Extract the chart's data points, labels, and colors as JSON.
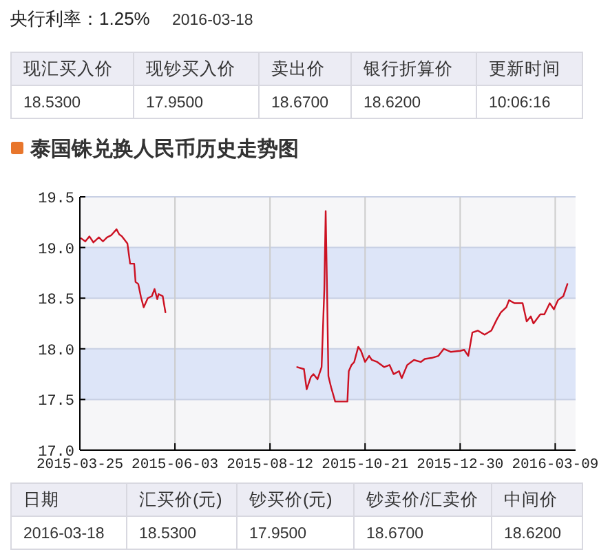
{
  "chart_data": [
    {
      "type": "other",
      "title": "央行利率：1.25%",
      "subtitle": "2016-03-18",
      "categories": [
        "现汇买入价",
        "现钞买入价",
        "卖出价",
        "银行折算价",
        "更新时间"
      ],
      "annotations": [
        "18.5300",
        "17.9500",
        "18.6700",
        "18.6200",
        "10:06:16"
      ]
    },
    {
      "type": "line",
      "title": "泰国铢兑换人民币历史走势图",
      "xlim": [
        "2015-03-25",
        "2016-03-24"
      ],
      "xticks": [
        "2015-03-25",
        "2015-06-03",
        "2015-08-12",
        "2015-10-21",
        "2015-12-30",
        "2016-03-09"
      ],
      "ylim": [
        17,
        19.5
      ],
      "yticks": [
        {
          "value": 17,
          "label": "17.0"
        },
        17.5,
        {
          "value": 18,
          "label": "18.0"
        },
        18.5,
        {
          "value": 19,
          "label": "19.0"
        },
        19.5
      ],
      "grid": true,
      "line_style": "solid",
      "marker": "none",
      "series": [
        {
          "color": "#cc1122",
          "x": [
            "2015-03-26",
            "2015-03-29",
            "2015-04-01",
            "2015-04-04",
            "2015-04-08",
            "2015-04-11",
            "2015-04-14",
            "2015-04-17",
            "2015-04-21",
            "2015-04-23",
            "2015-04-25",
            "2015-04-29",
            "2015-05-01",
            "2015-05-04",
            "2015-05-05",
            "2015-05-07",
            "2015-05-09",
            "2015-05-11",
            "2015-05-14",
            "2015-05-17",
            "2015-05-19",
            "2015-05-21",
            "2015-05-22",
            "2015-05-25",
            "2015-05-27",
            "2015-07-15",
            "2015-09-01",
            "2015-09-06",
            "2015-09-08",
            "2015-09-11",
            "2015-09-13",
            "2015-09-16",
            "2015-09-19",
            "2015-09-21",
            "2015-09-22",
            "2015-09-23",
            "2015-09-24",
            "2015-09-26",
            "2015-09-29",
            "2015-10-08",
            "2015-10-09",
            "2015-10-11",
            "2015-10-13",
            "2015-10-16",
            "2015-10-18",
            "2015-10-21",
            "2015-10-24",
            "2015-10-26",
            "2015-10-30",
            "2015-11-04",
            "2015-11-08",
            "2015-11-11",
            "2015-11-15",
            "2015-11-17",
            "2015-11-21",
            "2015-11-26",
            "2015-12-01",
            "2015-12-04",
            "2015-12-09",
            "2015-12-14",
            "2015-12-18",
            "2015-12-23",
            "2015-12-30",
            "2016-01-02",
            "2016-01-05",
            "2016-01-08",
            "2016-01-12",
            "2016-01-17",
            "2016-01-22",
            "2016-01-26",
            "2016-01-29",
            "2016-02-02",
            "2016-02-04",
            "2016-02-08",
            "2016-02-14",
            "2016-02-17",
            "2016-02-20",
            "2016-02-22",
            "2016-02-27",
            "2016-03-01",
            "2016-03-05",
            "2016-03-08",
            "2016-03-11",
            "2016-03-15",
            "2016-03-18"
          ],
          "values": [
            19.09,
            19.06,
            19.11,
            19.05,
            19.1,
            19.06,
            19.1,
            19.12,
            19.18,
            19.13,
            19.11,
            19.04,
            18.84,
            18.84,
            18.66,
            18.64,
            18.51,
            18.41,
            18.5,
            18.52,
            18.59,
            18.49,
            18.54,
            18.52,
            18.36,
            null,
            17.82,
            17.8,
            17.6,
            17.72,
            17.75,
            17.7,
            17.82,
            18.59,
            19.36,
            18.59,
            17.73,
            17.62,
            17.48,
            17.48,
            17.78,
            17.84,
            17.87,
            18.02,
            17.98,
            17.87,
            17.93,
            17.89,
            17.87,
            17.82,
            17.84,
            17.75,
            17.78,
            17.71,
            17.84,
            17.89,
            17.87,
            17.9,
            17.91,
            17.93,
            18.0,
            17.97,
            17.98,
            17.99,
            17.93,
            18.16,
            18.18,
            18.14,
            18.18,
            18.29,
            18.36,
            18.41,
            18.48,
            18.45,
            18.45,
            18.27,
            18.32,
            18.25,
            18.34,
            18.34,
            18.45,
            18.39,
            18.48,
            18.52,
            18.64
          ]
        }
      ]
    },
    {
      "type": "other",
      "categories": [
        "日期",
        "汇买价(元)",
        "钞买价(元)",
        "钞卖价/汇卖价",
        "中间价"
      ],
      "annotations": [
        "2016-03-18",
        "18.5300",
        "17.9500",
        "18.6700",
        "18.6200"
      ]
    }
  ]
}
